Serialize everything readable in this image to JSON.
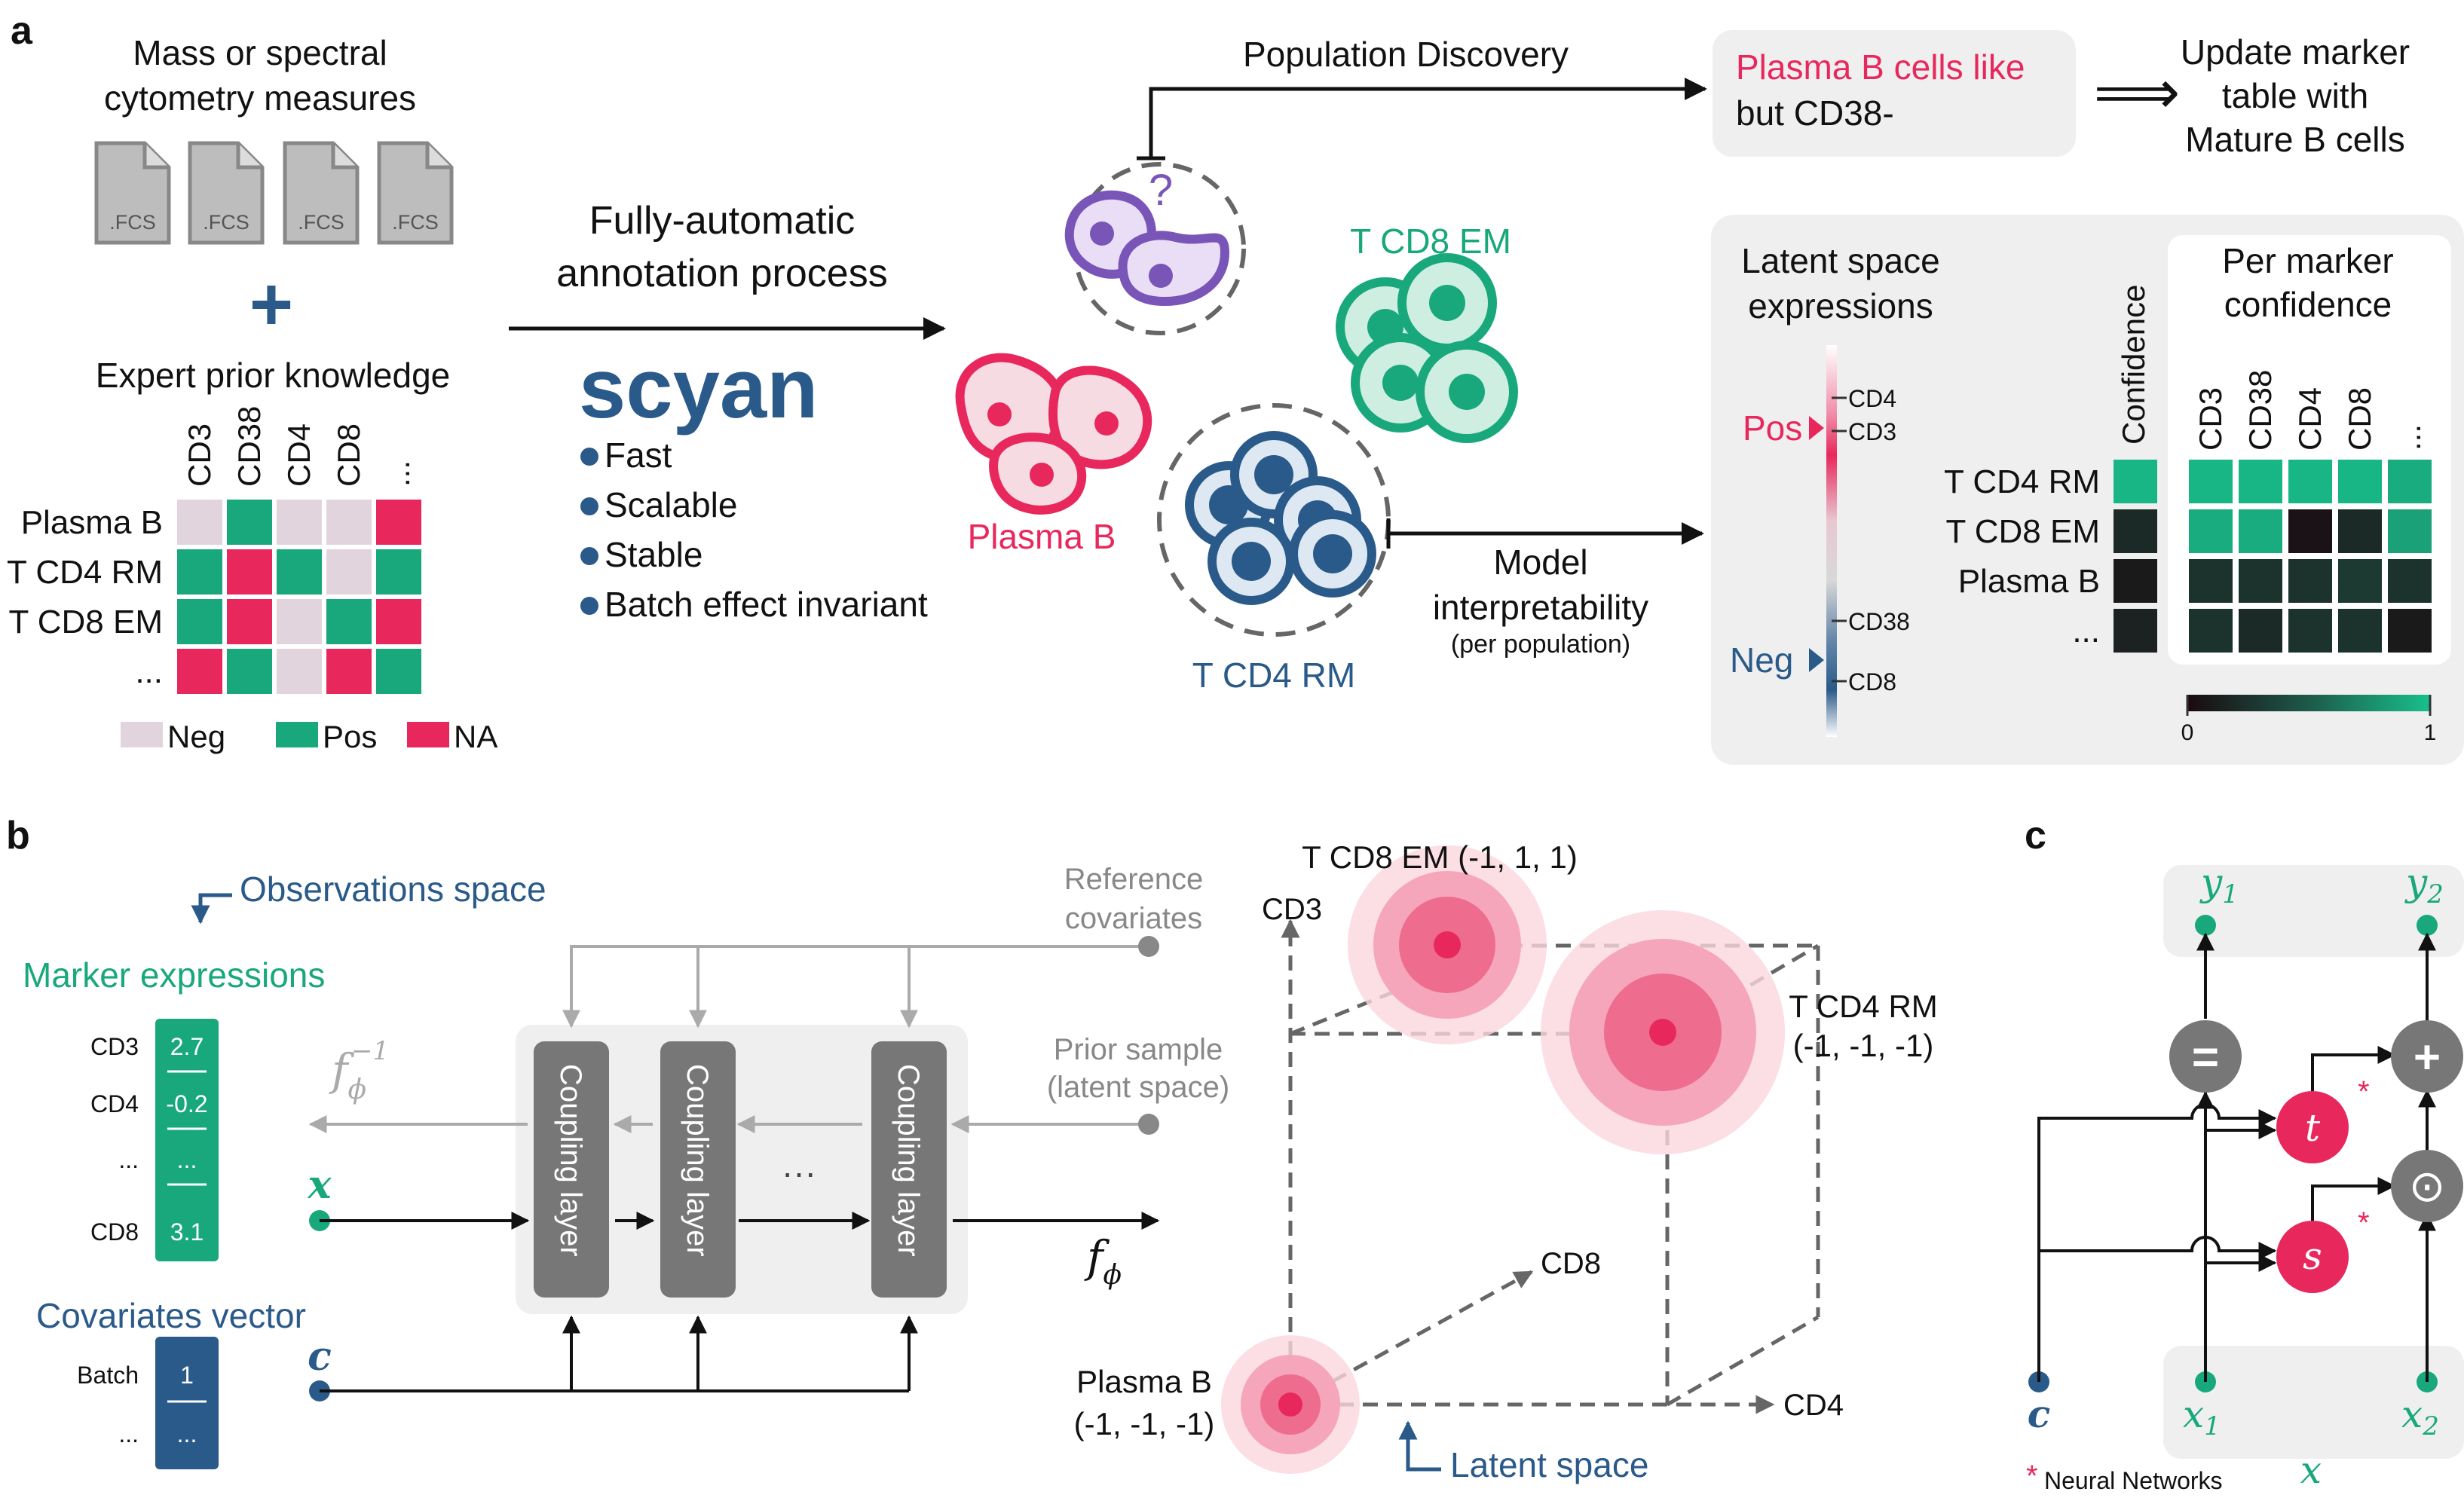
{
  "panel_a": {
    "label": "a",
    "input_title_line1": "Mass or spectral",
    "input_title_line2": "cytometry measures",
    "file_ext": ".FCS",
    "plus": "+",
    "prior_title": "Expert prior knowledge",
    "table_columns": [
      "CD3",
      "CD38",
      "CD4",
      "CD8",
      "..."
    ],
    "table_rows": [
      {
        "label": "Plasma B",
        "cells": [
          "Neg",
          "Pos",
          "Neg",
          "Neg",
          "NA"
        ]
      },
      {
        "label": "T CD4 RM",
        "cells": [
          "Pos",
          "NA",
          "Pos",
          "Neg",
          "Pos"
        ]
      },
      {
        "label": "T CD8 EM",
        "cells": [
          "Pos",
          "NA",
          "Neg",
          "Pos",
          "NA"
        ]
      },
      {
        "label": "...",
        "cells": [
          "NA",
          "Pos",
          "Neg",
          "NA",
          "Pos"
        ]
      }
    ],
    "legend": [
      {
        "key": "Neg",
        "label": "Neg",
        "color": "#e2d4dc"
      },
      {
        "key": "Pos",
        "label": "Pos",
        "color": "#18a87c"
      },
      {
        "key": "NA",
        "label": "NA",
        "color": "#e8285c"
      }
    ],
    "process_line1": "Fully-automatic",
    "process_line2": "annotation process",
    "tool_name": "scyan",
    "features": [
      "Fast",
      "Scalable",
      "Stable",
      "Batch effect invariant"
    ],
    "unknown_mark": "?",
    "population_discovery": "Population Discovery",
    "discovery_line1": "Plasma B cells like",
    "discovery_line2": "but CD38-",
    "implies": "⟹",
    "update_line1": "Update marker",
    "update_line2": "table with",
    "update_line3": "Mature B cells",
    "cell_labels": {
      "cd8em": "T CD8 EM",
      "plasma": "Plasma B",
      "cd4rm": "T CD4 RM"
    },
    "interp_line1": "Model",
    "interp_line2": "interpretability",
    "interp_line3": "(per population)",
    "latent_title_line1": "Latent space",
    "latent_title_line2": "expressions",
    "pos_label": "Pos",
    "neg_label": "Neg",
    "bar_ticks": [
      "CD4",
      "CD3",
      "CD38",
      "CD8"
    ],
    "confidence_label": "Confidence",
    "per_marker_line1": "Per marker",
    "per_marker_line2": "confidence",
    "heat_columns": [
      "CD3",
      "CD38",
      "CD4",
      "CD8",
      "..."
    ],
    "heat_rows": [
      {
        "label": "T CD4 RM",
        "confidence": 0.95,
        "values": [
          0.95,
          0.95,
          0.95,
          0.95,
          0.9
        ]
      },
      {
        "label": "T CD8 EM",
        "confidence": 0.2,
        "values": [
          0.9,
          0.9,
          0.05,
          0.2,
          0.85
        ]
      },
      {
        "label": "Plasma B",
        "confidence": 0.1,
        "values": [
          0.25,
          0.25,
          0.25,
          0.3,
          0.25
        ]
      },
      {
        "label": "...",
        "confidence": 0.15,
        "values": [
          0.25,
          0.2,
          0.25,
          0.25,
          0.1
        ]
      }
    ],
    "colorbar_min": "0",
    "colorbar_max": "1",
    "colors": {
      "teal": "#18a87c",
      "red": "#e8285c",
      "navy": "#2a5a8a",
      "purple": "#7a55b8",
      "grey_box": "#efefef"
    }
  },
  "panel_b": {
    "label": "b",
    "obs_space": "Observations space",
    "marker_expressions": "Marker expressions",
    "marker_rows": [
      {
        "name": "CD3",
        "value": "2.7"
      },
      {
        "name": "CD4",
        "value": "-0.2"
      },
      {
        "name": "...",
        "value": "..."
      },
      {
        "name": "CD8",
        "value": "3.1"
      }
    ],
    "covariates_title": "Covariates vector",
    "covariate_rows": [
      {
        "name": "Batch",
        "value": "1"
      },
      {
        "name": "...",
        "value": "..."
      }
    ],
    "x_symbol": "x",
    "c_symbol": "c",
    "f_inverse": "f",
    "f_inverse_sub": "ϕ",
    "f_inverse_sup": "−1",
    "f_forward": "f",
    "f_forward_sub": "ϕ",
    "coupling_layer": "Coupling layer",
    "ellipsis": "···",
    "reference_line1": "Reference",
    "reference_line2": "covariates",
    "prior_line1": "Prior sample",
    "prior_line2": "(latent space)",
    "axes": {
      "cd3": "CD3",
      "cd8": "CD8",
      "cd4": "CD4"
    },
    "latent_space": "Latent space",
    "pop_cd8em": "T CD8 EM (-1, 1, 1)",
    "pop_cd4rm_line1": "T CD4 RM",
    "pop_cd4rm_line2": "(-1, -1, -1)",
    "pop_plasma_line1": "Plasma B",
    "pop_plasma_line2": "(-1, -1, -1)"
  },
  "panel_c": {
    "label": "c",
    "y1": "y",
    "y1_sub": "1",
    "y2": "y",
    "y2_sub": "2",
    "x1": "x",
    "x1_sub": "1",
    "x2": "x",
    "x2_sub": "2",
    "c": "c",
    "x": "x",
    "t": "t",
    "s": "s",
    "equals": "=",
    "plus": "+",
    "odot": "⊙",
    "star": "*",
    "nn_note": "Neural Networks"
  }
}
